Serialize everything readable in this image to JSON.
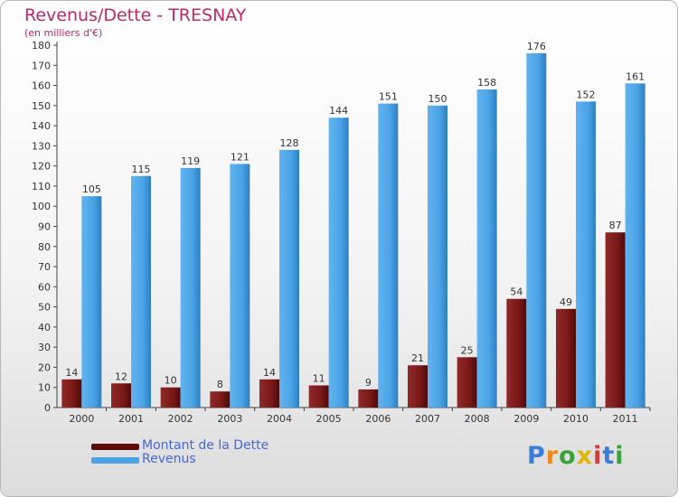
{
  "header": {
    "title": "Revenus/Dette - TRESNAY",
    "subtitle": "(en milliers d'€)"
  },
  "legend": {
    "debt_label": "Montant de la Dette",
    "revenue_label": "Revenus"
  },
  "logo": {
    "text": "Proxiti",
    "letters": [
      "P",
      "r",
      "o",
      "x",
      "i",
      "t",
      "i"
    ],
    "colors": [
      "#3b7dd8",
      "#f08a1c",
      "#3ba13b",
      "#e0b800",
      "#d23c3c",
      "#3b7dd8",
      "#3ba13b"
    ]
  },
  "colors": {
    "debt": "#7a1818",
    "revenue": "#4aa3e6",
    "legend_text": "#4a67d6",
    "title": "#c0266b"
  },
  "chart_data": {
    "type": "bar",
    "categories": [
      "2000",
      "2001",
      "2002",
      "2003",
      "2004",
      "2005",
      "2006",
      "2007",
      "2008",
      "2009",
      "2010",
      "2011"
    ],
    "series": [
      {
        "name": "Montant de la Dette",
        "values": [
          14,
          12,
          10,
          8,
          14,
          11,
          9,
          21,
          25,
          54,
          49,
          87
        ]
      },
      {
        "name": "Revenus",
        "values": [
          105,
          115,
          119,
          121,
          128,
          144,
          151,
          150,
          158,
          176,
          152,
          161
        ]
      }
    ],
    "title": "Revenus/Dette - TRESNAY",
    "ylabel": "(en milliers d'€)",
    "ylim": [
      0,
      180
    ],
    "yticks": [
      0,
      10,
      20,
      30,
      40,
      50,
      60,
      70,
      80,
      90,
      100,
      110,
      120,
      130,
      140,
      150,
      160,
      170,
      180
    ],
    "grid": false,
    "legend_position": "bottom-left"
  }
}
